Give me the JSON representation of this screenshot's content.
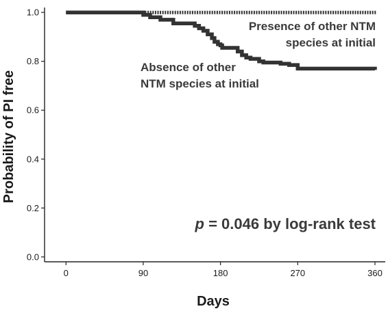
{
  "chart_data": {
    "type": "line",
    "subtype": "kaplan-meier-step",
    "xlabel": "Days",
    "ylabel": "Probability of PI free",
    "xlim": [
      -25,
      372
    ],
    "ylim": [
      -0.02,
      1.02
    ],
    "xticks": [
      0,
      90,
      180,
      270,
      360
    ],
    "xtick_labels": [
      "0",
      "90",
      "180",
      "270",
      "360"
    ],
    "yticks": [
      0.0,
      0.2,
      0.4,
      0.6,
      0.8,
      1.0
    ],
    "ytick_labels": [
      "0.0",
      "0.2",
      "0.4",
      "0.6",
      "0.8",
      "1.0"
    ],
    "grid": false,
    "legend": "none",
    "series": [
      {
        "name": "Presence of other NTM species at initial",
        "label_lines": [
          "Presence of other NTM",
          "species at initial"
        ],
        "style": "dashed",
        "color": "#333333",
        "x": [
          0,
          362
        ],
        "y": [
          1.0,
          1.0
        ]
      },
      {
        "name": "Absence of other NTM species at initial",
        "label_lines": [
          "Absence of other",
          "NTM species at initial"
        ],
        "style": "solid",
        "color": "#333333",
        "x": [
          0,
          90,
          98,
          110,
          125,
          145,
          150,
          155,
          160,
          165,
          170,
          173,
          177,
          180,
          182,
          195,
          200,
          205,
          210,
          215,
          220,
          225,
          230,
          250,
          260,
          270,
          360
        ],
        "y": [
          1.0,
          0.99,
          0.98,
          0.97,
          0.955,
          0.955,
          0.945,
          0.935,
          0.925,
          0.91,
          0.895,
          0.88,
          0.87,
          0.865,
          0.855,
          0.855,
          0.84,
          0.825,
          0.815,
          0.81,
          0.81,
          0.8,
          0.795,
          0.79,
          0.785,
          0.77,
          0.765
        ]
      }
    ],
    "annotation": {
      "p_symbol": "p",
      "text": " = 0.046 by log-rank test"
    }
  }
}
